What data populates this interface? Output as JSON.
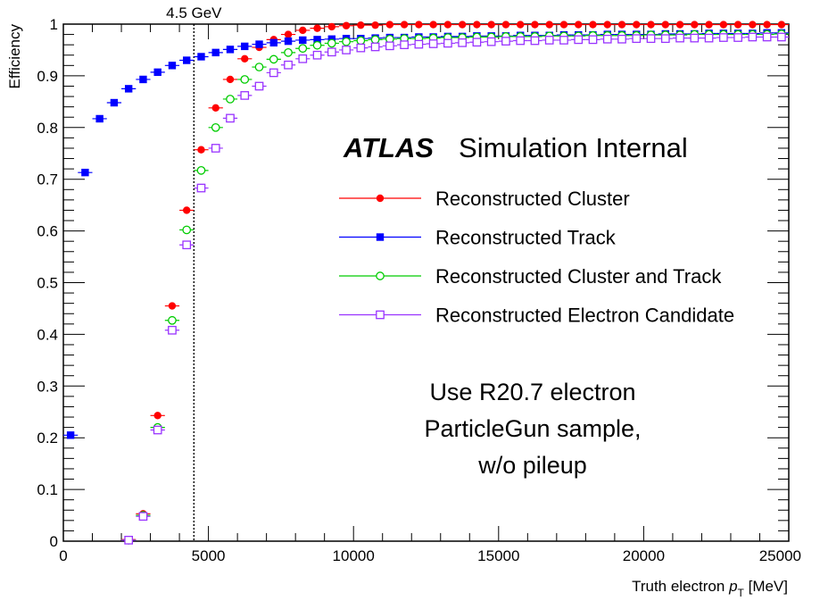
{
  "chart_data": {
    "type": "scatter",
    "ylabel": "Efficiency",
    "xlabel_main": "Truth electron ",
    "xlabel_p": "p",
    "xlabel_sub": "T",
    "xlabel_unit": " [MeV]",
    "xlim": [
      0,
      25000
    ],
    "ylim": [
      0,
      1
    ],
    "x_ticks": [
      0,
      5000,
      10000,
      15000,
      20000,
      25000
    ],
    "y_ticks": [
      0,
      0.1,
      0.2,
      0.3,
      0.4,
      0.5,
      0.6,
      0.7,
      0.8,
      0.9,
      1
    ],
    "y_tick_labels": [
      "0",
      "0.1",
      "0.2",
      "0.3",
      "0.4",
      "0.5",
      "0.6",
      "0.7",
      "0.8",
      "0.9",
      "1"
    ],
    "x_tick_labels": [
      "0",
      "5000",
      "10000",
      "15000",
      "20000",
      "25000"
    ],
    "vline": {
      "x": 4500,
      "label": "4.5 GeV"
    },
    "bin_width": 500,
    "x": [
      250,
      750,
      1250,
      1750,
      2250,
      2750,
      3250,
      3750,
      4250,
      4750,
      5250,
      5750,
      6250,
      6750,
      7250,
      7750,
      8250,
      8750,
      9250,
      9750,
      10250,
      10750,
      11250,
      11750,
      12250,
      12750,
      13250,
      13750,
      14250,
      14750,
      15250,
      15750,
      16250,
      16750,
      17250,
      17750,
      18250,
      18750,
      19250,
      19750,
      20250,
      20750,
      21250,
      21750,
      22250,
      22750,
      23250,
      23750,
      24250,
      24750
    ],
    "series": [
      {
        "name": "Reconstructed Cluster",
        "color": "#ff0000",
        "marker": "filled-circle",
        "start_index": 4,
        "values": [
          0.003,
          0.053,
          0.243,
          0.455,
          0.64,
          0.757,
          0.838,
          0.893,
          0.933,
          0.955,
          0.97,
          0.98,
          0.988,
          0.992,
          0.995,
          0.997,
          0.998,
          0.998,
          0.999,
          0.999,
          0.999,
          0.999,
          0.999,
          0.999,
          0.999,
          0.999,
          0.999,
          0.999,
          0.999,
          0.999,
          0.999,
          0.999,
          0.999,
          0.999,
          0.999,
          0.999,
          0.999,
          0.999,
          0.999,
          0.999,
          0.999,
          0.999,
          0.999,
          0.999,
          0.999,
          0.999
        ]
      },
      {
        "name": "Reconstructed Track",
        "color": "#0000ff",
        "marker": "filled-square",
        "start_index": 0,
        "values": [
          0.205,
          0.713,
          0.817,
          0.848,
          0.875,
          0.893,
          0.907,
          0.92,
          0.93,
          0.937,
          0.945,
          0.951,
          0.957,
          0.961,
          0.964,
          0.967,
          0.969,
          0.97,
          0.971,
          0.972,
          0.972,
          0.973,
          0.974,
          0.974,
          0.975,
          0.975,
          0.976,
          0.976,
          0.977,
          0.977,
          0.977,
          0.978,
          0.978,
          0.978,
          0.979,
          0.979,
          0.979,
          0.98,
          0.98,
          0.98,
          0.98,
          0.981,
          0.981,
          0.981,
          0.982,
          0.982,
          0.982,
          0.982,
          0.983,
          0.983
        ]
      },
      {
        "name": "Reconstructed Cluster and Track",
        "color": "#00cc00",
        "marker": "open-circle",
        "start_index": 4,
        "values": [
          0.002,
          0.05,
          0.22,
          0.427,
          0.602,
          0.717,
          0.8,
          0.855,
          0.893,
          0.917,
          0.932,
          0.945,
          0.953,
          0.959,
          0.963,
          0.966,
          0.968,
          0.97,
          0.971,
          0.972,
          0.972,
          0.973,
          0.974,
          0.974,
          0.975,
          0.975,
          0.976,
          0.976,
          0.976,
          0.977,
          0.977,
          0.977,
          0.978,
          0.978,
          0.978,
          0.978,
          0.979,
          0.979,
          0.979,
          0.98,
          0.98,
          0.98,
          0.98,
          0.98,
          0.98,
          0.981
        ]
      },
      {
        "name": "Reconstructed Electron Candidate",
        "color": "#9933ff",
        "marker": "open-square",
        "start_index": 4,
        "values": [
          0.002,
          0.048,
          0.215,
          0.408,
          0.573,
          0.683,
          0.76,
          0.818,
          0.862,
          0.88,
          0.906,
          0.921,
          0.933,
          0.94,
          0.946,
          0.95,
          0.954,
          0.956,
          0.958,
          0.96,
          0.961,
          0.962,
          0.963,
          0.964,
          0.965,
          0.966,
          0.967,
          0.968,
          0.968,
          0.969,
          0.969,
          0.97,
          0.97,
          0.971,
          0.971,
          0.972,
          0.972,
          0.972,
          0.973,
          0.973,
          0.973,
          0.974,
          0.974,
          0.975,
          0.975,
          0.975
        ]
      }
    ],
    "legend_position": "right-middle",
    "annotation_title_bold": "ATLAS",
    "annotation_title_rest": "Simulation Internal",
    "annotation_lines": [
      "Use R20.7 electron",
      "ParticleGun sample,",
      "w/o pileup"
    ]
  }
}
